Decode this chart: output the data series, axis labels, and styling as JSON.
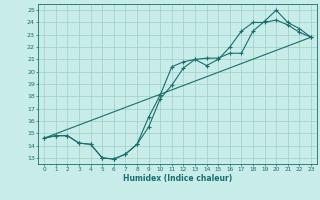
{
  "xlabel": "Humidex (Indice chaleur)",
  "bg_color": "#c8ece8",
  "grid_color": "#9ecec8",
  "line_color": "#1a6e6e",
  "xlim": [
    -0.5,
    23.5
  ],
  "ylim": [
    12.5,
    25.5
  ],
  "xticks": [
    0,
    1,
    2,
    3,
    4,
    5,
    6,
    7,
    8,
    9,
    10,
    11,
    12,
    13,
    14,
    15,
    16,
    17,
    18,
    19,
    20,
    21,
    22,
    23
  ],
  "yticks": [
    13,
    14,
    15,
    16,
    17,
    18,
    19,
    20,
    21,
    22,
    23,
    24,
    25
  ],
  "line1_x": [
    0,
    1,
    2,
    3,
    4,
    5,
    6,
    7,
    8,
    9,
    10,
    11,
    12,
    13,
    14,
    15,
    16,
    17,
    18,
    19,
    20,
    21,
    22,
    23
  ],
  "line1_y": [
    14.6,
    14.8,
    14.8,
    14.2,
    14.1,
    13.0,
    12.9,
    13.3,
    14.1,
    16.3,
    18.1,
    20.4,
    20.8,
    21.0,
    21.1,
    21.1,
    21.5,
    21.5,
    23.3,
    24.1,
    25.0,
    24.0,
    23.5,
    22.8
  ],
  "line2_x": [
    0,
    1,
    2,
    3,
    4,
    5,
    6,
    7,
    8,
    9,
    10,
    11,
    12,
    13,
    14,
    15,
    16,
    17,
    18,
    19,
    20,
    21,
    22,
    23
  ],
  "line2_y": [
    14.6,
    14.8,
    14.8,
    14.2,
    14.1,
    13.0,
    12.9,
    13.3,
    14.1,
    15.5,
    17.8,
    18.9,
    20.3,
    21.0,
    20.5,
    21.0,
    22.0,
    23.3,
    24.0,
    24.0,
    24.2,
    23.8,
    23.2,
    22.8
  ],
  "line3_x": [
    0,
    23
  ],
  "line3_y": [
    14.6,
    22.8
  ]
}
